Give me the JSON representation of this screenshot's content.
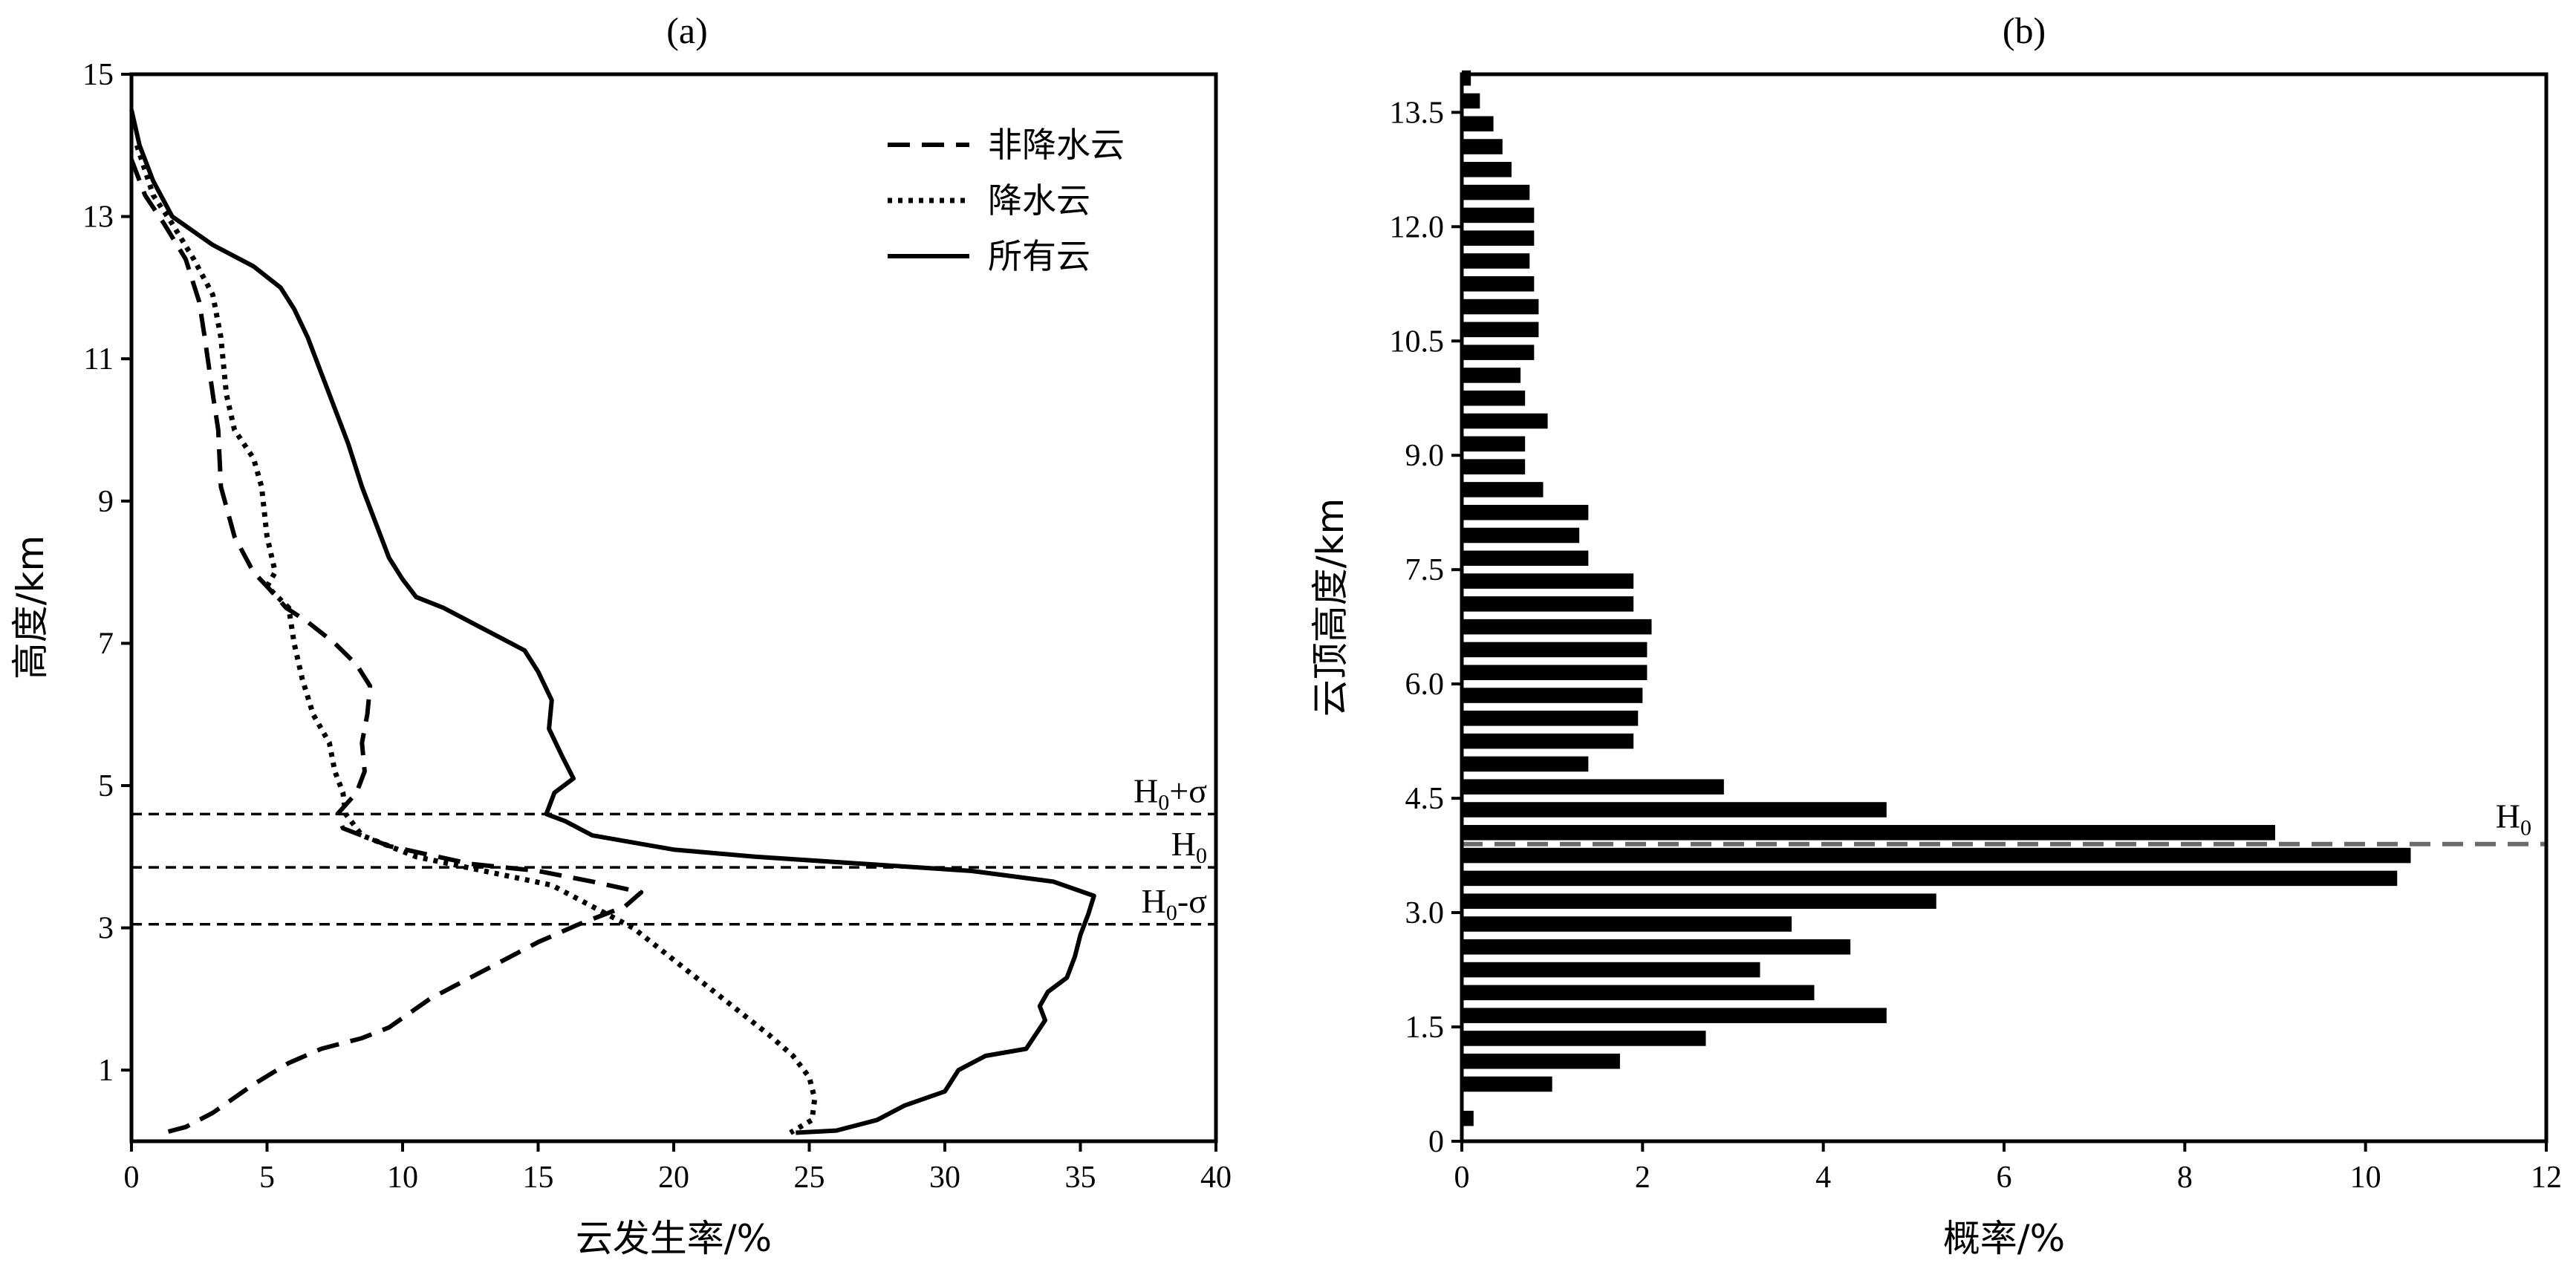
{
  "chart_data": [
    {
      "type": "line",
      "panel_label": "(a)",
      "xlabel": "云发生率/%",
      "ylabel": "高度/km",
      "xlim": [
        0,
        40
      ],
      "ylim": [
        0,
        15
      ],
      "xticks": [
        0,
        5,
        10,
        15,
        20,
        25,
        30,
        35,
        40
      ],
      "yticks": [
        1,
        3,
        5,
        7,
        9,
        11,
        13,
        15
      ],
      "legend_position": "top-right",
      "series": [
        {
          "name": "非降水云",
          "style": "dashed",
          "points": [
            [
              0,
              13.8
            ],
            [
              0.5,
              13.3
            ],
            [
              1.2,
              12.9
            ],
            [
              2.0,
              12.4
            ],
            [
              2.5,
              11.8
            ],
            [
              2.7,
              11.3
            ],
            [
              3.0,
              10.5
            ],
            [
              3.2,
              10.0
            ],
            [
              3.3,
              9.2
            ],
            [
              3.8,
              8.5
            ],
            [
              4.5,
              8.0
            ],
            [
              5.0,
              7.8
            ],
            [
              5.7,
              7.5
            ],
            [
              6.5,
              7.3
            ],
            [
              7.5,
              7.0
            ],
            [
              8.3,
              6.7
            ],
            [
              8.8,
              6.4
            ],
            [
              8.7,
              6.0
            ],
            [
              8.5,
              5.6
            ],
            [
              8.6,
              5.2
            ],
            [
              8.3,
              4.9
            ],
            [
              7.6,
              4.6
            ],
            [
              7.8,
              4.4
            ],
            [
              9.5,
              4.15
            ],
            [
              12.5,
              3.9
            ],
            [
              15.0,
              3.8
            ],
            [
              17.0,
              3.65
            ],
            [
              18.8,
              3.5
            ],
            [
              18.2,
              3.3
            ],
            [
              16.5,
              3.05
            ],
            [
              15.0,
              2.8
            ],
            [
              13.5,
              2.5
            ],
            [
              12.0,
              2.2
            ],
            [
              11.0,
              2.0
            ],
            [
              9.5,
              1.6
            ],
            [
              8.5,
              1.45
            ],
            [
              7.0,
              1.3
            ],
            [
              5.8,
              1.1
            ],
            [
              4.5,
              0.8
            ],
            [
              3.0,
              0.4
            ],
            [
              2.0,
              0.2
            ],
            [
              1.2,
              0.12
            ]
          ]
        },
        {
          "name": "降水云",
          "style": "dotted",
          "points": [
            [
              0.2,
              14.0
            ],
            [
              0.8,
              13.3
            ],
            [
              1.5,
              12.9
            ],
            [
              2.3,
              12.4
            ],
            [
              3.0,
              11.9
            ],
            [
              3.3,
              11.3
            ],
            [
              3.5,
              10.5
            ],
            [
              3.8,
              10.0
            ],
            [
              4.5,
              9.6
            ],
            [
              4.8,
              9.2
            ],
            [
              5.0,
              8.5
            ],
            [
              5.3,
              8.0
            ],
            [
              5.0,
              7.8
            ],
            [
              5.8,
              7.5
            ],
            [
              6.0,
              7.0
            ],
            [
              6.3,
              6.5
            ],
            [
              6.7,
              6.0
            ],
            [
              7.3,
              5.6
            ],
            [
              7.5,
              5.2
            ],
            [
              7.8,
              4.9
            ],
            [
              7.9,
              4.6
            ],
            [
              8.5,
              4.3
            ],
            [
              10.5,
              4.0
            ],
            [
              13.0,
              3.8
            ],
            [
              15.5,
              3.6
            ],
            [
              17.0,
              3.3
            ],
            [
              18.5,
              3.0
            ],
            [
              19.5,
              2.7
            ],
            [
              20.5,
              2.4
            ],
            [
              21.5,
              2.1
            ],
            [
              22.5,
              1.8
            ],
            [
              23.5,
              1.5
            ],
            [
              24.4,
              1.2
            ],
            [
              25.0,
              0.9
            ],
            [
              25.2,
              0.6
            ],
            [
              25.1,
              0.3
            ],
            [
              24.3,
              0.12
            ]
          ]
        },
        {
          "name": "所有云",
          "style": "solid",
          "points": [
            [
              0,
              14.5
            ],
            [
              0.3,
              14.0
            ],
            [
              0.8,
              13.5
            ],
            [
              1.5,
              13.0
            ],
            [
              3.0,
              12.6
            ],
            [
              4.5,
              12.3
            ],
            [
              5.5,
              12.0
            ],
            [
              6.0,
              11.7
            ],
            [
              6.5,
              11.3
            ],
            [
              7.0,
              10.8
            ],
            [
              7.5,
              10.3
            ],
            [
              8.0,
              9.8
            ],
            [
              8.5,
              9.2
            ],
            [
              9.0,
              8.7
            ],
            [
              9.5,
              8.2
            ],
            [
              10.0,
              7.9
            ],
            [
              10.5,
              7.65
            ],
            [
              11.5,
              7.5
            ],
            [
              12.5,
              7.3
            ],
            [
              13.5,
              7.1
            ],
            [
              14.5,
              6.9
            ],
            [
              15.0,
              6.6
            ],
            [
              15.5,
              6.2
            ],
            [
              15.4,
              5.8
            ],
            [
              15.9,
              5.4
            ],
            [
              16.3,
              5.1
            ],
            [
              15.6,
              4.9
            ],
            [
              15.3,
              4.6
            ],
            [
              16.0,
              4.5
            ],
            [
              17.0,
              4.3
            ],
            [
              20.0,
              4.1
            ],
            [
              23.0,
              4.0
            ],
            [
              27.0,
              3.9
            ],
            [
              31.0,
              3.8
            ],
            [
              34.0,
              3.65
            ],
            [
              35.5,
              3.45
            ],
            [
              35.3,
              3.2
            ],
            [
              35.0,
              2.9
            ],
            [
              34.8,
              2.6
            ],
            [
              34.5,
              2.3
            ],
            [
              33.8,
              2.1
            ],
            [
              33.5,
              1.9
            ],
            [
              33.7,
              1.7
            ],
            [
              33.0,
              1.3
            ],
            [
              31.5,
              1.2
            ],
            [
              30.5,
              1.0
            ],
            [
              30.0,
              0.7
            ],
            [
              28.5,
              0.5
            ],
            [
              27.5,
              0.3
            ],
            [
              26.0,
              0.15
            ],
            [
              24.5,
              0.12
            ]
          ]
        }
      ],
      "reference_lines": [
        {
          "label_main": "H",
          "label_sub": "0",
          "label_suffix": "+σ",
          "y": 4.6
        },
        {
          "label_main": "H",
          "label_sub": "0",
          "label_suffix": "",
          "y": 3.85
        },
        {
          "label_main": "H",
          "label_sub": "0",
          "label_suffix": "-σ",
          "y": 3.05
        }
      ]
    },
    {
      "type": "bar",
      "orientation": "horizontal",
      "panel_label": "(b)",
      "xlabel": "概率/%",
      "ylabel": "云顶高度/km",
      "xlim": [
        0,
        12
      ],
      "ylim": [
        0,
        14.0
      ],
      "xticks": [
        0,
        2,
        4,
        6,
        8,
        10,
        12
      ],
      "yticks": [
        "0",
        "1.5",
        "3.0",
        "4.5",
        "6.0",
        "7.5",
        "9.0",
        "10.5",
        "12.0",
        "13.5"
      ],
      "bar_height_km": 0.2,
      "categories": [
        0.3,
        0.75,
        1.05,
        1.35,
        1.65,
        1.95,
        2.25,
        2.55,
        2.85,
        3.15,
        3.45,
        3.75,
        4.05,
        4.35,
        4.65,
        4.95,
        5.25,
        5.55,
        5.85,
        6.15,
        6.45,
        6.75,
        7.05,
        7.35,
        7.65,
        7.95,
        8.25,
        8.55,
        8.85,
        9.15,
        9.45,
        9.75,
        10.05,
        10.35,
        10.65,
        10.95,
        11.25,
        11.55,
        11.85,
        12.15,
        12.45,
        12.75,
        13.05,
        13.35,
        13.65,
        13.95
      ],
      "values": [
        0.13,
        1.0,
        1.75,
        2.7,
        4.7,
        3.9,
        3.3,
        4.3,
        3.65,
        5.25,
        10.35,
        10.5,
        9.0,
        4.7,
        2.9,
        1.4,
        1.9,
        1.95,
        2.0,
        2.05,
        2.05,
        2.1,
        1.9,
        1.9,
        1.4,
        1.3,
        1.4,
        0.9,
        0.7,
        0.7,
        0.95,
        0.7,
        0.65,
        0.8,
        0.85,
        0.85,
        0.8,
        0.75,
        0.8,
        0.8,
        0.75,
        0.55,
        0.45,
        0.35,
        0.2,
        0.1
      ],
      "reference_lines": [
        {
          "label_main": "H",
          "label_sub": "0",
          "label_suffix": "",
          "y": 3.9,
          "color": "#6b6b6b"
        }
      ]
    }
  ]
}
